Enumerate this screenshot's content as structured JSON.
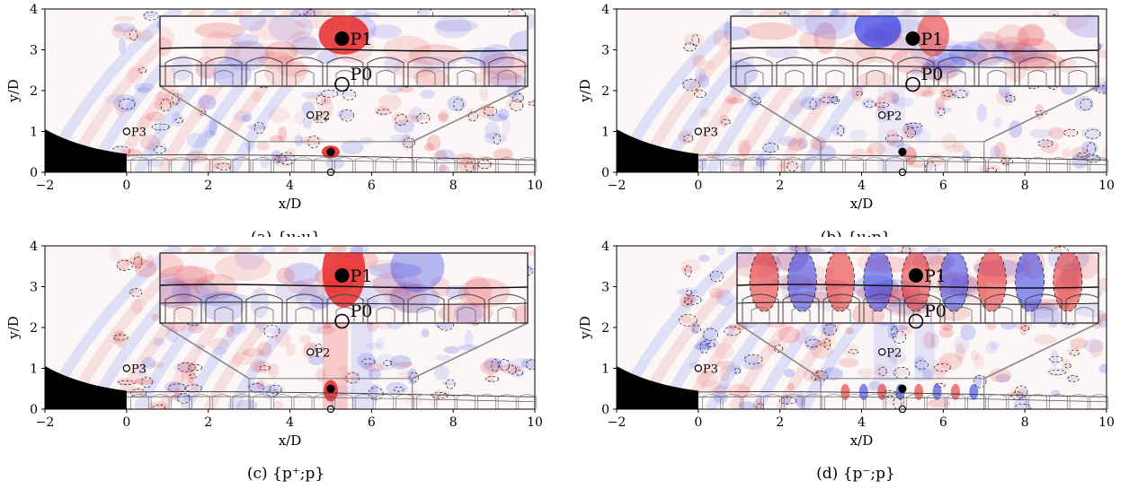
{
  "figure": {
    "panels": [
      {
        "id": "a",
        "caption": "(a) {u;u}"
      },
      {
        "id": "b",
        "caption": "(b) {u;p}"
      },
      {
        "id": "c",
        "caption": "(c) {p⁺;p}"
      },
      {
        "id": "d",
        "caption": "(d) {p⁻;p}"
      }
    ]
  },
  "chart_data": [
    {
      "type": "heatmap",
      "caption": "(a) {u;u}",
      "xlabel": "x/D",
      "ylabel": "y/D",
      "xlim": [
        -2,
        10
      ],
      "ylim": [
        0,
        4
      ],
      "xticks": [
        -2,
        0,
        2,
        4,
        6,
        8,
        10
      ],
      "yticks": [
        0,
        1,
        2,
        3,
        4
      ],
      "colormap": [
        "#2a2ae0",
        "#ffffff",
        "#e02020"
      ],
      "probes": [
        {
          "name": "P0",
          "x": 5.0,
          "y": 0.0,
          "style": "open"
        },
        {
          "name": "P1",
          "x": 5.0,
          "y": 0.5,
          "style": "filled"
        },
        {
          "name": "P2",
          "x": 4.5,
          "y": 1.4,
          "style": "open"
        },
        {
          "name": "P3",
          "x": 0.0,
          "y": 1.0,
          "style": "open"
        }
      ],
      "zoom_box": {
        "x": [
          3,
          7
        ],
        "y": [
          0,
          0.75
        ]
      },
      "grid": false
    },
    {
      "type": "heatmap",
      "caption": "(b) {u;p}",
      "xlabel": "x/D",
      "ylabel": "y/D",
      "xlim": [
        -2,
        10
      ],
      "ylim": [
        0,
        4
      ],
      "xticks": [
        -2,
        0,
        2,
        4,
        6,
        8,
        10
      ],
      "yticks": [
        0,
        1,
        2,
        3,
        4
      ],
      "colormap": [
        "#2a2ae0",
        "#ffffff",
        "#e02020"
      ],
      "probes": [
        {
          "name": "P0",
          "x": 5.0,
          "y": 0.0,
          "style": "open"
        },
        {
          "name": "P1",
          "x": 5.0,
          "y": 0.5,
          "style": "filled"
        },
        {
          "name": "P2",
          "x": 4.5,
          "y": 1.4,
          "style": "open"
        },
        {
          "name": "P3",
          "x": 0.0,
          "y": 1.0,
          "style": "open"
        }
      ],
      "zoom_box": {
        "x": [
          3,
          7
        ],
        "y": [
          0,
          0.75
        ]
      },
      "grid": false
    },
    {
      "type": "heatmap",
      "caption": "(c) {p⁺;p}",
      "xlabel": "x/D",
      "ylabel": "y/D",
      "xlim": [
        -2,
        10
      ],
      "ylim": [
        0,
        4
      ],
      "xticks": [
        -2,
        0,
        2,
        4,
        6,
        8,
        10
      ],
      "yticks": [
        0,
        1,
        2,
        3,
        4
      ],
      "colormap": [
        "#2a2ae0",
        "#ffffff",
        "#e02020"
      ],
      "probes": [
        {
          "name": "P0",
          "x": 5.0,
          "y": 0.0,
          "style": "open"
        },
        {
          "name": "P1",
          "x": 5.0,
          "y": 0.5,
          "style": "filled"
        },
        {
          "name": "P2",
          "x": 4.5,
          "y": 1.4,
          "style": "open"
        },
        {
          "name": "P3",
          "x": 0.0,
          "y": 1.0,
          "style": "open"
        }
      ],
      "zoom_box": {
        "x": [
          3,
          7
        ],
        "y": [
          0,
          0.75
        ]
      },
      "grid": false
    },
    {
      "type": "heatmap",
      "caption": "(d) {p⁻;p}",
      "xlabel": "x/D",
      "ylabel": "y/D",
      "xlim": [
        -2,
        10
      ],
      "ylim": [
        0,
        4
      ],
      "xticks": [
        -2,
        0,
        2,
        4,
        6,
        8,
        10
      ],
      "yticks": [
        0,
        1,
        2,
        3,
        4
      ],
      "colormap": [
        "#2a2ae0",
        "#ffffff",
        "#e02020"
      ],
      "probes": [
        {
          "name": "P0",
          "x": 5.0,
          "y": 0.0,
          "style": "open"
        },
        {
          "name": "P1",
          "x": 5.0,
          "y": 0.5,
          "style": "filled"
        },
        {
          "name": "P2",
          "x": 4.5,
          "y": 1.4,
          "style": "open"
        },
        {
          "name": "P3",
          "x": 0.0,
          "y": 1.0,
          "style": "open"
        }
      ],
      "zoom_box": {
        "x": [
          3,
          7
        ],
        "y": [
          0,
          0.75
        ]
      },
      "grid": false
    }
  ]
}
